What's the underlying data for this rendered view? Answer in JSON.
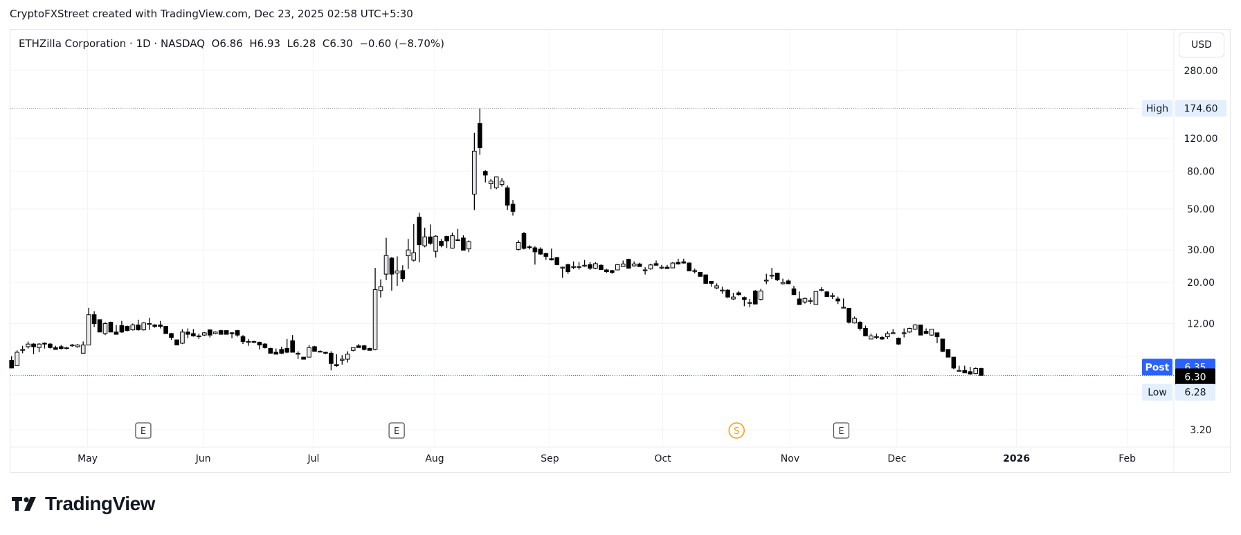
{
  "attribution": "CryptoFXStreet created with TradingView.com, Dec 23, 2025 02:58 UTC+5:30",
  "legend": {
    "symbol": "ETHZilla Corporation · 1D · NASDAQ",
    "open": "O6.86",
    "high": "H6.93",
    "low": "L6.28",
    "close": "C6.30",
    "change": "−0.60 (−8.70%)"
  },
  "currency_button": "USD",
  "brand": "TradingView",
  "chart_data": {
    "type": "candlestick",
    "scale": "log",
    "interval": "1D",
    "ylim": [
      3.0,
      300
    ],
    "grid": true,
    "y_ticks": [
      "280.00",
      "120.00",
      "80.00",
      "50.00",
      "30.00",
      "20.00",
      "12.00",
      "3.20"
    ],
    "y_tick_values": [
      280,
      120,
      80,
      50,
      30,
      20,
      12,
      3.2
    ],
    "x_ticks": [
      "May",
      "Jun",
      "Jul",
      "Aug",
      "Sep",
      "Oct",
      "Nov",
      "Dec",
      "2026",
      "Feb"
    ],
    "markers": {
      "high": {
        "label": "High",
        "value": "174.60"
      },
      "post": {
        "label": "Post",
        "value": "6.35"
      },
      "last": {
        "value": "6.30"
      },
      "low": {
        "label": "Low",
        "value": "6.28"
      }
    },
    "events": [
      "E",
      "E",
      "S",
      "E"
    ],
    "colors": {
      "up_fill": "#e8e8ee",
      "down_fill": "#000000",
      "outline": "#000000",
      "post": "#2962ff",
      "last": "#000000",
      "marker_bg": "#e3effd"
    },
    "ohlc": [
      [
        7.6,
        8.0,
        6.9,
        6.9
      ],
      [
        7.1,
        8.6,
        7.1,
        8.4
      ],
      [
        8.6,
        9.1,
        8.3,
        8.7
      ],
      [
        9.0,
        9.6,
        8.8,
        9.3
      ],
      [
        9.3,
        9.4,
        8.2,
        9.0
      ],
      [
        8.9,
        9.4,
        8.4,
        9.3
      ],
      [
        9.4,
        9.5,
        8.8,
        9.3
      ],
      [
        9.3,
        9.4,
        8.8,
        8.9
      ],
      [
        8.9,
        9.1,
        8.7,
        8.7
      ],
      [
        9.0,
        9.2,
        8.7,
        8.8
      ],
      [
        8.8,
        9.0,
        8.7,
        8.9
      ],
      [
        9.1,
        9.3,
        9.0,
        9.2
      ],
      [
        9.0,
        9.3,
        8.9,
        9.2
      ],
      [
        8.3,
        9.6,
        8.3,
        9.2
      ],
      [
        9.2,
        14.6,
        9.2,
        13.4
      ],
      [
        13.4,
        14.0,
        11.5,
        12.0
      ],
      [
        12.6,
        12.6,
        10.8,
        10.8
      ],
      [
        10.6,
        12.2,
        10.4,
        12.0
      ],
      [
        12.2,
        12.3,
        10.8,
        10.8
      ],
      [
        10.8,
        11.8,
        10.5,
        10.5
      ],
      [
        11.7,
        12.4,
        10.7,
        10.8
      ],
      [
        11.6,
        11.7,
        10.9,
        11.0
      ],
      [
        11.1,
        12.0,
        11.0,
        11.8
      ],
      [
        11.8,
        12.6,
        11.0,
        11.1
      ],
      [
        11.1,
        12.2,
        11.0,
        12.1
      ],
      [
        12.0,
        12.9,
        11.1,
        12.0
      ],
      [
        11.8,
        11.9,
        11.4,
        11.6
      ],
      [
        11.8,
        12.4,
        11.3,
        11.6
      ],
      [
        11.6,
        11.6,
        10.6,
        10.6
      ],
      [
        10.6,
        10.7,
        9.8,
        10.1
      ],
      [
        9.8,
        9.8,
        9.2,
        9.2
      ],
      [
        9.4,
        11.2,
        9.3,
        10.8
      ],
      [
        10.8,
        11.3,
        10.0,
        10.5
      ],
      [
        10.6,
        11.2,
        10.2,
        10.3
      ],
      [
        10.3,
        10.6,
        9.9,
        10.2
      ],
      [
        10.4,
        10.8,
        10.3,
        10.7
      ],
      [
        11.1,
        11.1,
        10.1,
        10.4
      ],
      [
        10.6,
        10.9,
        10.5,
        10.8
      ],
      [
        11.0,
        11.1,
        10.5,
        10.5
      ],
      [
        11.0,
        11.0,
        10.5,
        10.5
      ],
      [
        10.7,
        10.8,
        10.0,
        10.6
      ],
      [
        11.0,
        11.1,
        10.2,
        10.4
      ],
      [
        10.2,
        10.4,
        9.3,
        9.6
      ],
      [
        9.6,
        9.9,
        9.1,
        9.6
      ],
      [
        9.6,
        9.7,
        9.4,
        9.6
      ],
      [
        9.5,
        9.6,
        8.7,
        9.2
      ],
      [
        9.3,
        9.4,
        8.8,
        8.9
      ],
      [
        8.8,
        8.9,
        8.3,
        8.3
      ],
      [
        8.4,
        8.8,
        8.2,
        8.2
      ],
      [
        8.7,
        9.0,
        8.2,
        8.3
      ],
      [
        8.8,
        9.9,
        8.3,
        8.4
      ],
      [
        9.7,
        10.4,
        8.4,
        8.4
      ],
      [
        8.3,
        8.5,
        7.7,
        8.2
      ],
      [
        7.9,
        7.9,
        7.7,
        7.7
      ],
      [
        7.9,
        9.2,
        7.9,
        8.9
      ],
      [
        9.0,
        9.1,
        8.5,
        8.5
      ],
      [
        8.5,
        8.6,
        8.4,
        8.5
      ],
      [
        8.4,
        8.4,
        8.2,
        8.3
      ],
      [
        8.3,
        8.5,
        6.7,
        7.3
      ],
      [
        7.2,
        8.2,
        7.0,
        7.1
      ],
      [
        7.6,
        8.1,
        7.2,
        7.7
      ],
      [
        7.7,
        8.5,
        7.4,
        8.2
      ],
      [
        8.6,
        8.9,
        8.5,
        8.9
      ],
      [
        9.1,
        9.3,
        8.9,
        8.9
      ],
      [
        9.1,
        9.2,
        8.6,
        8.7
      ],
      [
        8.8,
        8.9,
        8.6,
        8.6
      ],
      [
        8.7,
        24.0,
        8.6,
        18.3
      ],
      [
        18.1,
        20.8,
        16.6,
        19.0
      ],
      [
        22.2,
        34.9,
        20.6,
        28.0
      ],
      [
        27.1,
        27.5,
        18.1,
        22.2
      ],
      [
        22.5,
        27.7,
        19.2,
        23.1
      ],
      [
        23.2,
        24.8,
        20.2,
        21.0
      ],
      [
        27.9,
        34.4,
        23.7,
        30.0
      ],
      [
        26.4,
        41.4,
        26.0,
        29.0
      ],
      [
        45.1,
        47.6,
        25.7,
        32.0
      ],
      [
        31.6,
        39.6,
        31.0,
        35.3
      ],
      [
        35.3,
        41.2,
        32.0,
        32.6
      ],
      [
        29.5,
        36.0,
        27.3,
        35.6
      ],
      [
        33.4,
        34.4,
        31.0,
        31.7
      ],
      [
        35.5,
        35.8,
        30.7,
        33.6
      ],
      [
        30.7,
        37.2,
        30.5,
        35.8
      ],
      [
        34.1,
        39.0,
        33.5,
        34.1
      ],
      [
        34.8,
        36.0,
        29.8,
        29.9
      ],
      [
        30.4,
        33.8,
        29.2,
        33.3
      ],
      [
        60.1,
        129.0,
        49.3,
        102.6
      ],
      [
        144.6,
        174.6,
        98.0,
        107.0
      ],
      [
        79.7,
        81.0,
        69.5,
        76.2
      ],
      [
        68.4,
        72.5,
        63.9,
        70.7
      ],
      [
        65.0,
        74.8,
        63.9,
        74.4
      ],
      [
        67.7,
        73.5,
        66.0,
        70.7
      ],
      [
        65.0,
        67.0,
        49.3,
        52.4
      ],
      [
        53.0,
        55.8,
        46.0,
        48.5
      ],
      [
        30.2,
        33.8,
        29.8,
        32.9
      ],
      [
        36.8,
        37.5,
        30.2,
        30.6
      ],
      [
        31.2,
        31.8,
        30.2,
        31.0
      ],
      [
        30.8,
        31.4,
        25.0,
        29.3
      ],
      [
        30.3,
        31.0,
        28.2,
        28.5
      ],
      [
        28.7,
        28.9,
        26.5,
        27.7
      ],
      [
        26.9,
        30.5,
        26.3,
        26.5
      ],
      [
        27.3,
        27.5,
        24.8,
        25.0
      ],
      [
        24.2,
        24.4,
        21.2,
        24.2
      ],
      [
        25.0,
        25.3,
        22.3,
        22.9
      ],
      [
        24.4,
        26.0,
        23.6,
        24.4
      ],
      [
        24.4,
        25.8,
        23.5,
        24.4
      ],
      [
        24.7,
        26.5,
        24.3,
        24.8
      ],
      [
        25.0,
        25.8,
        23.4,
        23.9
      ],
      [
        23.9,
        25.8,
        23.6,
        25.3
      ],
      [
        24.8,
        25.1,
        23.5,
        23.5
      ],
      [
        23.4,
        23.7,
        22.6,
        22.9
      ],
      [
        23.2,
        23.4,
        22.3,
        22.7
      ],
      [
        23.4,
        25.2,
        23.4,
        25.0
      ],
      [
        24.4,
        26.3,
        24.3,
        25.2
      ],
      [
        26.7,
        26.9,
        23.8,
        23.9
      ],
      [
        24.6,
        26.0,
        24.4,
        25.2
      ],
      [
        25.2,
        25.6,
        24.3,
        24.4
      ],
      [
        23.4,
        24.2,
        22.1,
        23.4
      ],
      [
        23.7,
        25.3,
        23.4,
        24.9
      ],
      [
        25.3,
        26.3,
        24.7,
        24.8
      ],
      [
        24.2,
        24.9,
        23.6,
        24.2
      ],
      [
        24.2,
        24.9,
        23.8,
        23.8
      ],
      [
        24.0,
        25.8,
        23.9,
        25.5
      ],
      [
        25.7,
        26.9,
        25.0,
        25.2
      ],
      [
        25.9,
        26.9,
        25.3,
        25.5
      ],
      [
        25.5,
        25.7,
        23.0,
        23.1
      ],
      [
        23.2,
        23.8,
        22.4,
        23.2
      ],
      [
        22.7,
        22.8,
        21.5,
        21.6
      ],
      [
        22.0,
        22.1,
        19.7,
        19.8
      ],
      [
        20.3,
        20.4,
        19.0,
        19.8
      ],
      [
        18.7,
        19.8,
        18.4,
        19.2
      ],
      [
        18.2,
        19.0,
        17.4,
        18.2
      ],
      [
        18.2,
        18.4,
        16.5,
        16.7
      ],
      [
        16.3,
        17.6,
        16.1,
        16.7
      ],
      [
        17.6,
        18.0,
        17.0,
        17.2
      ],
      [
        16.6,
        16.8,
        14.9,
        16.2
      ],
      [
        15.6,
        16.3,
        14.7,
        15.6
      ],
      [
        18.0,
        18.2,
        15.3,
        15.3
      ],
      [
        16.2,
        18.5,
        16.0,
        18.0
      ],
      [
        20.6,
        22.3,
        19.6,
        20.6
      ],
      [
        21.9,
        24.0,
        20.9,
        21.9
      ],
      [
        22.5,
        22.6,
        20.4,
        20.7
      ],
      [
        19.7,
        21.0,
        19.5,
        20.0
      ],
      [
        20.4,
        20.8,
        19.6,
        19.7
      ],
      [
        18.5,
        19.2,
        17.2,
        17.2
      ],
      [
        16.3,
        17.9,
        15.2,
        15.2
      ],
      [
        15.7,
        16.6,
        15.4,
        16.4
      ],
      [
        16.0,
        16.6,
        15.3,
        16.0
      ],
      [
        15.2,
        18.0,
        15.2,
        17.9
      ],
      [
        18.3,
        18.9,
        17.9,
        18.3
      ],
      [
        17.8,
        18.0,
        16.8,
        16.8
      ],
      [
        17.0,
        17.6,
        16.3,
        17.0
      ],
      [
        16.3,
        16.8,
        15.3,
        15.9
      ],
      [
        14.7,
        16.4,
        14.6,
        14.7
      ],
      [
        14.5,
        14.5,
        12.0,
        12.2
      ],
      [
        12.1,
        13.1,
        12.0,
        12.8
      ],
      [
        12.2,
        12.4,
        11.0,
        11.3
      ],
      [
        11.3,
        11.7,
        10.3,
        10.3
      ],
      [
        9.9,
        10.6,
        9.9,
        10.3
      ],
      [
        10.2,
        10.6,
        9.9,
        10.2
      ],
      [
        10.1,
        10.3,
        9.8,
        9.9
      ],
      [
        10.2,
        10.9,
        9.9,
        10.6
      ],
      [
        10.7,
        11.2,
        10.7,
        10.7
      ],
      [
        10.0,
        10.1,
        9.2,
        9.3
      ],
      [
        10.7,
        11.3,
        10.1,
        10.7
      ],
      [
        10.8,
        11.4,
        10.7,
        11.3
      ],
      [
        11.2,
        11.9,
        11.1,
        11.8
      ],
      [
        11.8,
        11.8,
        10.4,
        10.4
      ],
      [
        10.9,
        11.3,
        10.6,
        10.6
      ],
      [
        10.4,
        11.2,
        10.3,
        11.2
      ],
      [
        10.7,
        10.7,
        9.4,
        10.2
      ],
      [
        9.9,
        9.9,
        8.4,
        8.5
      ],
      [
        8.7,
        8.7,
        7.9,
        7.9
      ],
      [
        7.9,
        7.9,
        6.8,
        6.9
      ],
      [
        6.7,
        7.1,
        6.7,
        6.7
      ],
      [
        6.7,
        7.1,
        6.5,
        6.5
      ],
      [
        6.6,
        7.0,
        6.35,
        6.4
      ],
      [
        6.45,
        6.95,
        6.4,
        6.86
      ],
      [
        6.86,
        6.93,
        6.28,
        6.3
      ]
    ]
  }
}
